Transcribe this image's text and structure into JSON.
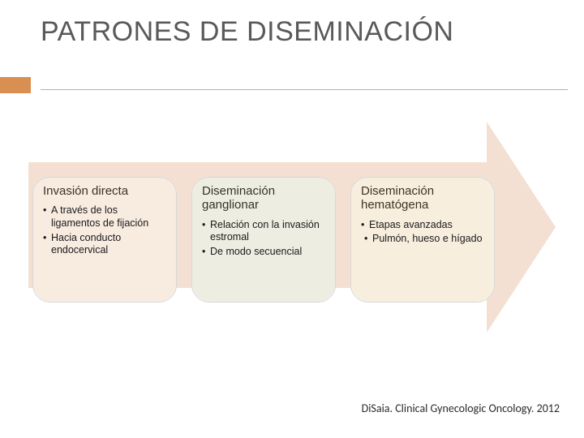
{
  "slide": {
    "title": "PATRONES DE DISEMINACIÓN",
    "accent_color": "#d98f52",
    "underline_color": "#b0b0b0",
    "arrow_color": "#f3e0d3",
    "citation": "DiSaia. Clinical Gynecologic Oncology. 2012"
  },
  "boxes": [
    {
      "title": "Invasión directa",
      "tint": "#d98f52",
      "bullets": [
        "A través de los ligamentos de fijación",
        "Hacia conducto endocervical"
      ]
    },
    {
      "title": "Diseminación ganglionar",
      "tint": "#9aa05a",
      "bullets": [
        "Relación con la invasión estromal",
        "De modo secuencial"
      ]
    },
    {
      "title": "Diseminación hematógena",
      "tint": "#d3a14a",
      "bullets": [
        "Etapas avanzadas"
      ],
      "sub": [
        "Pulmón, hueso e hígado"
      ]
    }
  ]
}
